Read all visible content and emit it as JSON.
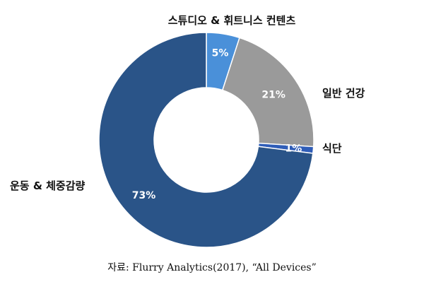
{
  "chart_data": {
    "type": "pie",
    "categories": [
      "스튜디오 & 휘트니스 컨텐츠",
      "일반 건강",
      "식단",
      "운동 & 체중감량"
    ],
    "values": [
      5,
      21,
      1,
      73
    ],
    "value_labels": [
      "5%",
      "21%",
      "1%",
      "73%"
    ],
    "colors": [
      "#4a90d9",
      "#9a9a9a",
      "#2f5db8",
      "#2a5488"
    ],
    "hole": true,
    "title": "",
    "source": "자료: Flurry Analytics(2017), “All Devices”"
  }
}
